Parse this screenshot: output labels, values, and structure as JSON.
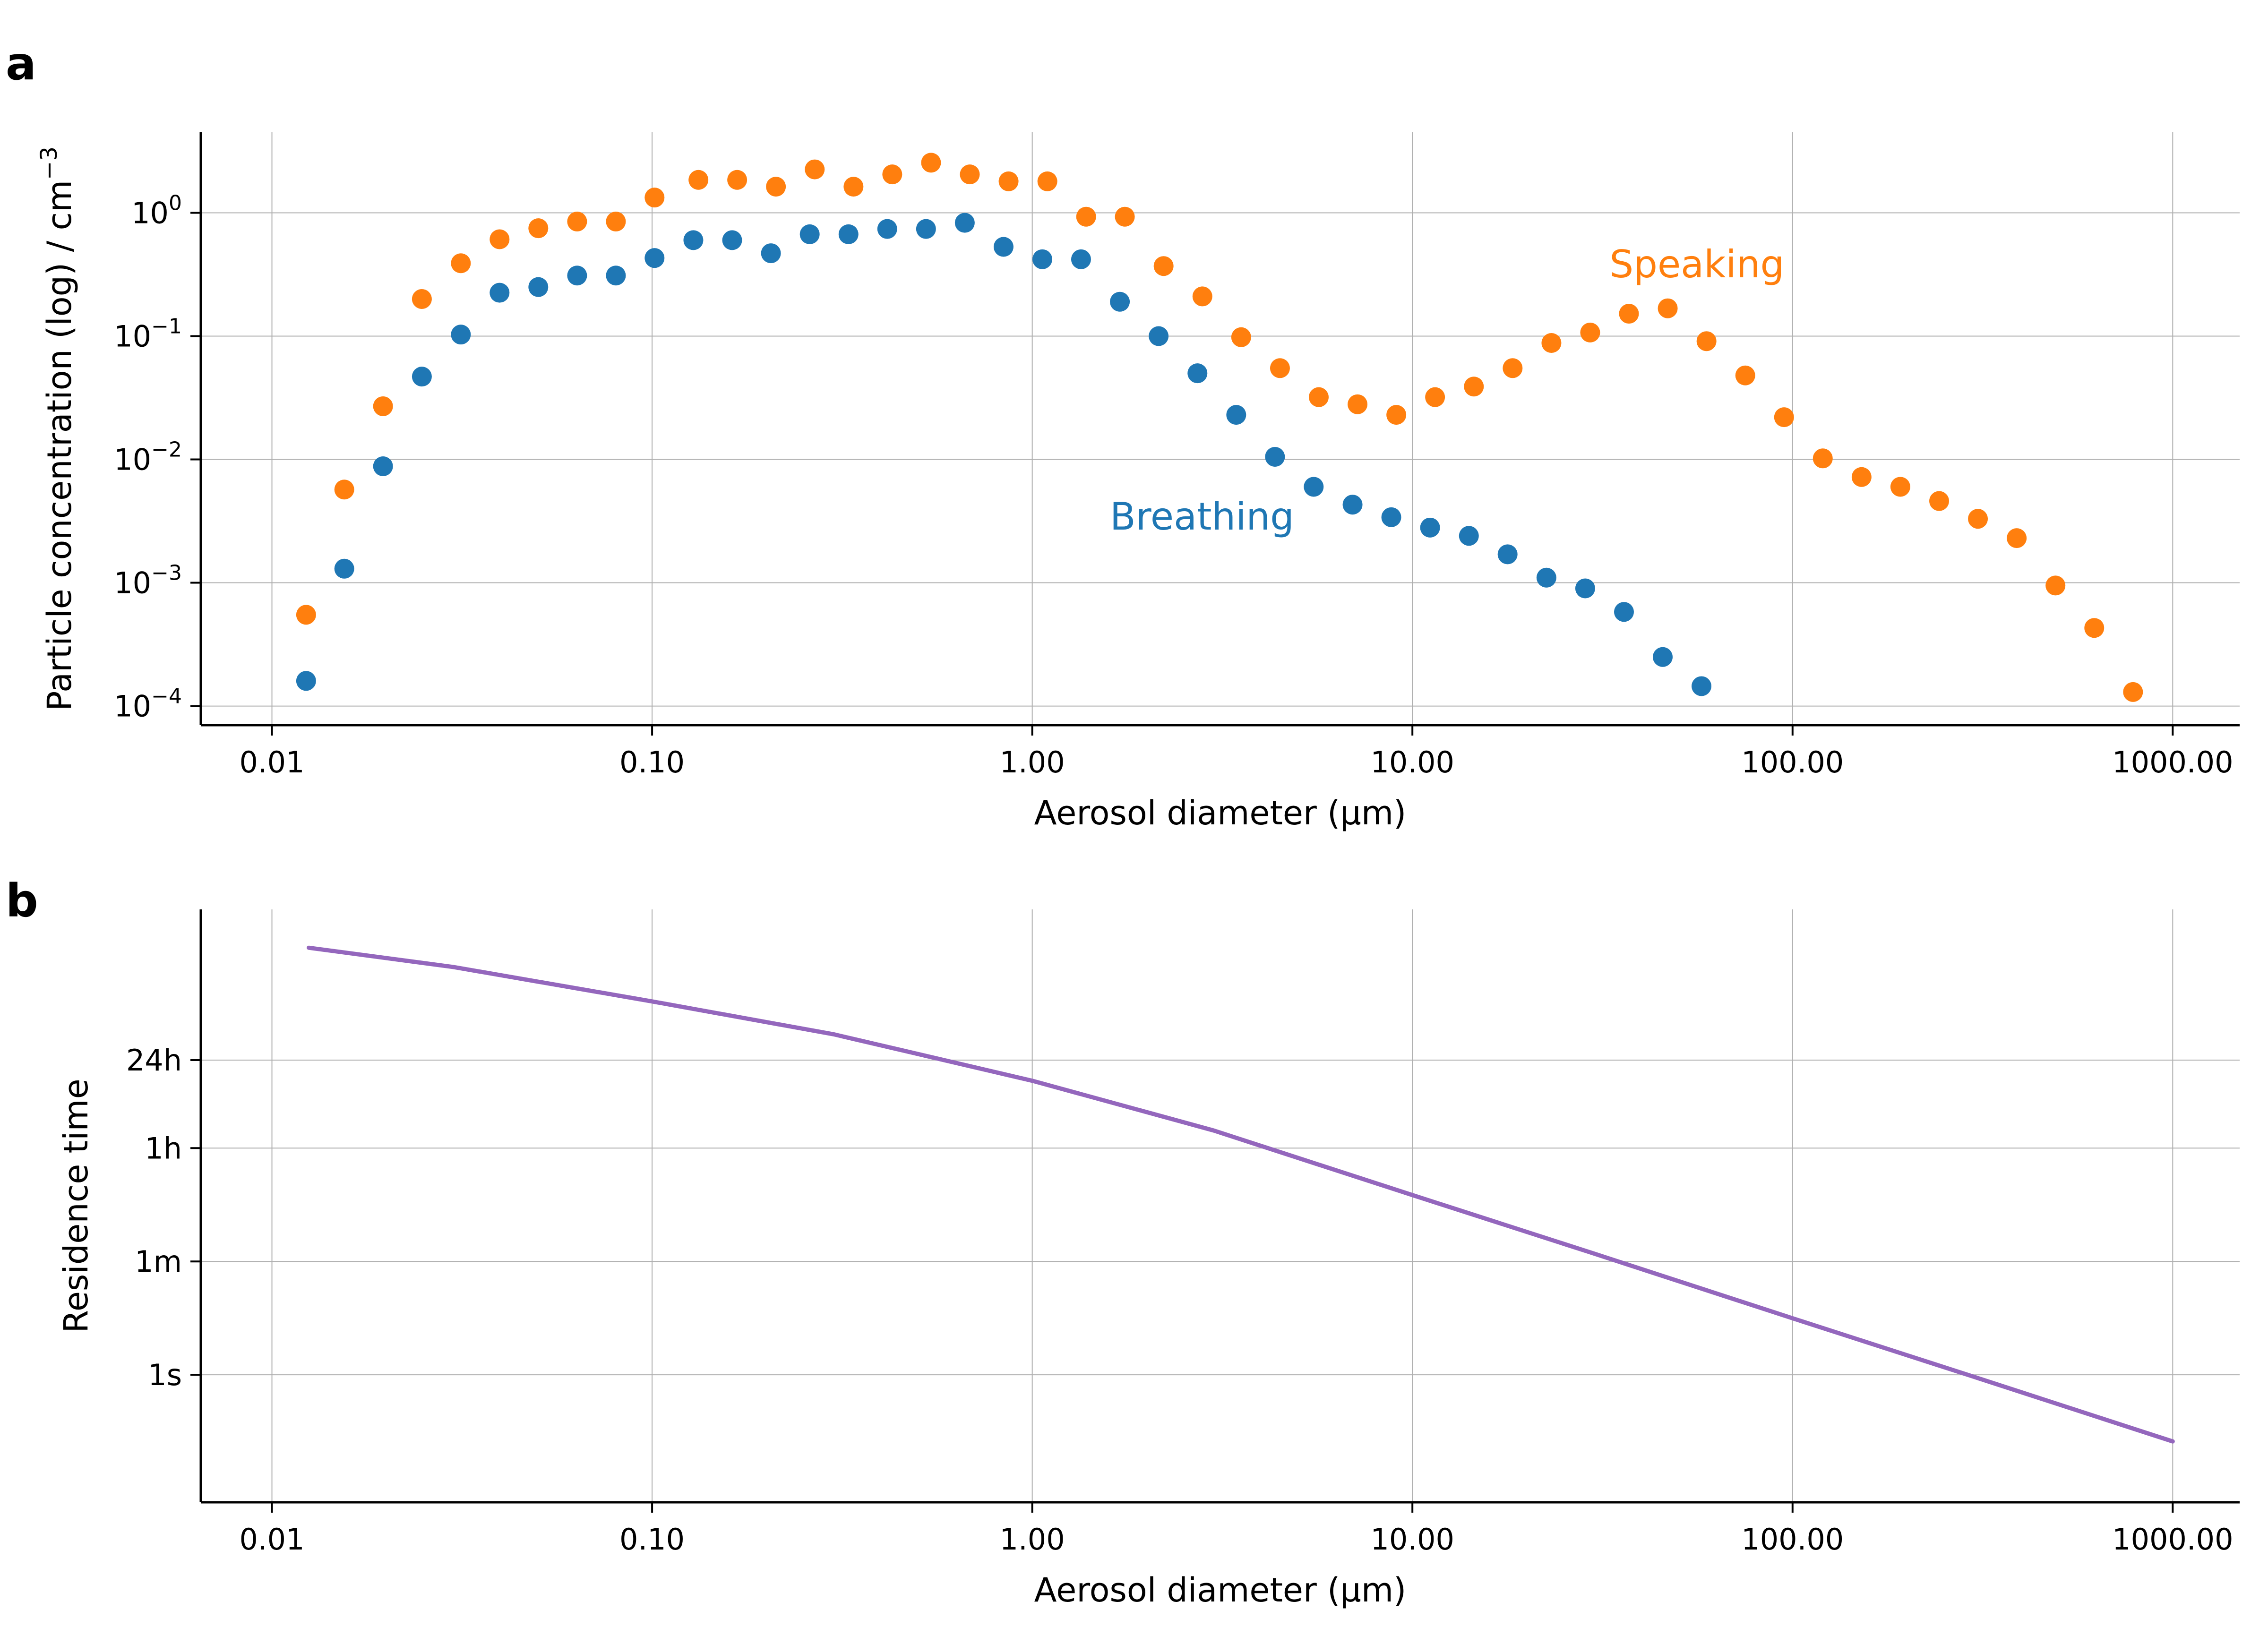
{
  "panel_labels": [
    "a",
    "b"
  ],
  "colors": {
    "breathing": "#1f77b4",
    "speaking": "#ff7f0e",
    "residence": "#9467bd",
    "grid": "#b0b0b0"
  },
  "chart_data": [
    {
      "panel": "a",
      "type": "scatter",
      "xlabel": "Aerosol diameter (μm)",
      "ylabel": "Particle concentration (log) / cm",
      "ylabel_superscript": "−3",
      "xscale": "log",
      "yscale": "log",
      "xlim": [
        0.0065,
        1500
      ],
      "ylim": [
        7e-05,
        4.5
      ],
      "grid": true,
      "x_ticks": [
        0.01,
        0.1,
        1,
        10,
        100,
        1000
      ],
      "x_tick_labels": [
        "0.01",
        "0.10",
        "1.00",
        "10.00",
        "100.00",
        "1000.00"
      ],
      "y_ticks": [
        0.0001,
        0.001,
        0.01,
        0.1,
        1
      ],
      "y_tick_labels": [
        {
          "base": "10",
          "exp": "−4"
        },
        {
          "base": "10",
          "exp": "−3"
        },
        {
          "base": "10",
          "exp": "−2"
        },
        {
          "base": "10",
          "exp": "−1"
        },
        {
          "base": "10",
          "exp": "0"
        }
      ],
      "series": [
        {
          "name": "Breathing",
          "annotation": {
            "text": "Breathing",
            "x": 1.6,
            "y": 0.0027
          },
          "x": [
            0.0123,
            0.0155,
            0.0196,
            0.0248,
            0.0314,
            0.0397,
            0.0502,
            0.0635,
            0.0803,
            0.1015,
            0.1284,
            0.1624,
            0.2054,
            0.2598,
            0.3286,
            0.4155,
            0.5255,
            0.6646,
            0.8405,
            1.063,
            1.344,
            1.7,
            2.15,
            2.72,
            3.44,
            4.35,
            5.5,
            6.96,
            8.8,
            11.13,
            14.08,
            17.8,
            22.52,
            28.48,
            36.02,
            45.55,
            57.6
          ],
          "y": [
            0.00016,
            0.0013,
            0.0088,
            0.047,
            0.103,
            0.225,
            0.25,
            0.31,
            0.31,
            0.43,
            0.6,
            0.6,
            0.47,
            0.67,
            0.67,
            0.74,
            0.74,
            0.83,
            0.53,
            0.42,
            0.42,
            0.19,
            0.1,
            0.05,
            0.023,
            0.0105,
            0.006,
            0.0043,
            0.0034,
            0.0028,
            0.0024,
            0.0017,
            0.0011,
            0.0009,
            0.00058,
            0.00025,
            0.000145
          ]
        },
        {
          "name": "Speaking",
          "annotation": {
            "text": "Speaking",
            "x": 33,
            "y": 0.3
          },
          "x": [
            0.0123,
            0.0155,
            0.0196,
            0.0248,
            0.0314,
            0.0397,
            0.0502,
            0.0635,
            0.0803,
            0.1015,
            0.1324,
            0.1674,
            0.2117,
            0.2678,
            0.3387,
            0.4283,
            0.5417,
            0.6851,
            0.8665,
            1.096,
            1.386,
            1.752,
            2.216,
            2.803,
            3.545,
            4.484,
            5.671,
            7.172,
            9.071,
            11.47,
            14.51,
            18.35,
            23.21,
            29.35,
            37.12,
            46.95,
            59.38,
            75.1,
            94.98,
            120.1,
            151.9,
            192.1,
            243.0,
            307.3,
            388.7,
            491.6,
            621.7,
            786.3
          ],
          "y": [
            0.00055,
            0.0057,
            0.027,
            0.2,
            0.39,
            0.61,
            0.75,
            0.85,
            0.85,
            1.33,
            1.85,
            1.85,
            1.63,
            2.25,
            1.63,
            2.05,
            2.55,
            2.05,
            1.8,
            1.8,
            0.93,
            0.93,
            0.37,
            0.21,
            0.098,
            0.055,
            0.032,
            0.028,
            0.023,
            0.032,
            0.039,
            0.055,
            0.088,
            0.107,
            0.152,
            0.168,
            0.091,
            0.048,
            0.022,
            0.0102,
            0.0072,
            0.006,
            0.0046,
            0.0033,
            0.0023,
            0.00095,
            0.00043,
            0.00013
          ]
        }
      ]
    },
    {
      "panel": "b",
      "type": "line",
      "xlabel": "Aerosol diameter (μm)",
      "ylabel": "Residence time",
      "xscale": "log",
      "yscale": "log",
      "xlim": [
        0.0065,
        1500
      ],
      "ylim": [
        0.01,
        20000000
      ],
      "grid": true,
      "x_ticks": [
        0.01,
        0.1,
        1,
        10,
        100,
        1000
      ],
      "x_tick_labels": [
        "0.01",
        "0.10",
        "1.00",
        "10.00",
        "100.00",
        "1000.00"
      ],
      "y_ticks": [
        1,
        60,
        3600,
        86400
      ],
      "y_tick_labels": [
        "1s",
        "1m",
        "1h",
        "24h"
      ],
      "series": [
        {
          "x": [
            0.0125,
            0.03,
            0.1,
            0.3,
            1,
            3,
            10,
            30,
            100,
            300,
            1000
          ],
          "y": [
            5000000,
            2500000,
            720000,
            220000,
            41000,
            6800,
            660,
            80,
            7.7,
            0.93,
            0.09
          ]
        }
      ]
    }
  ]
}
